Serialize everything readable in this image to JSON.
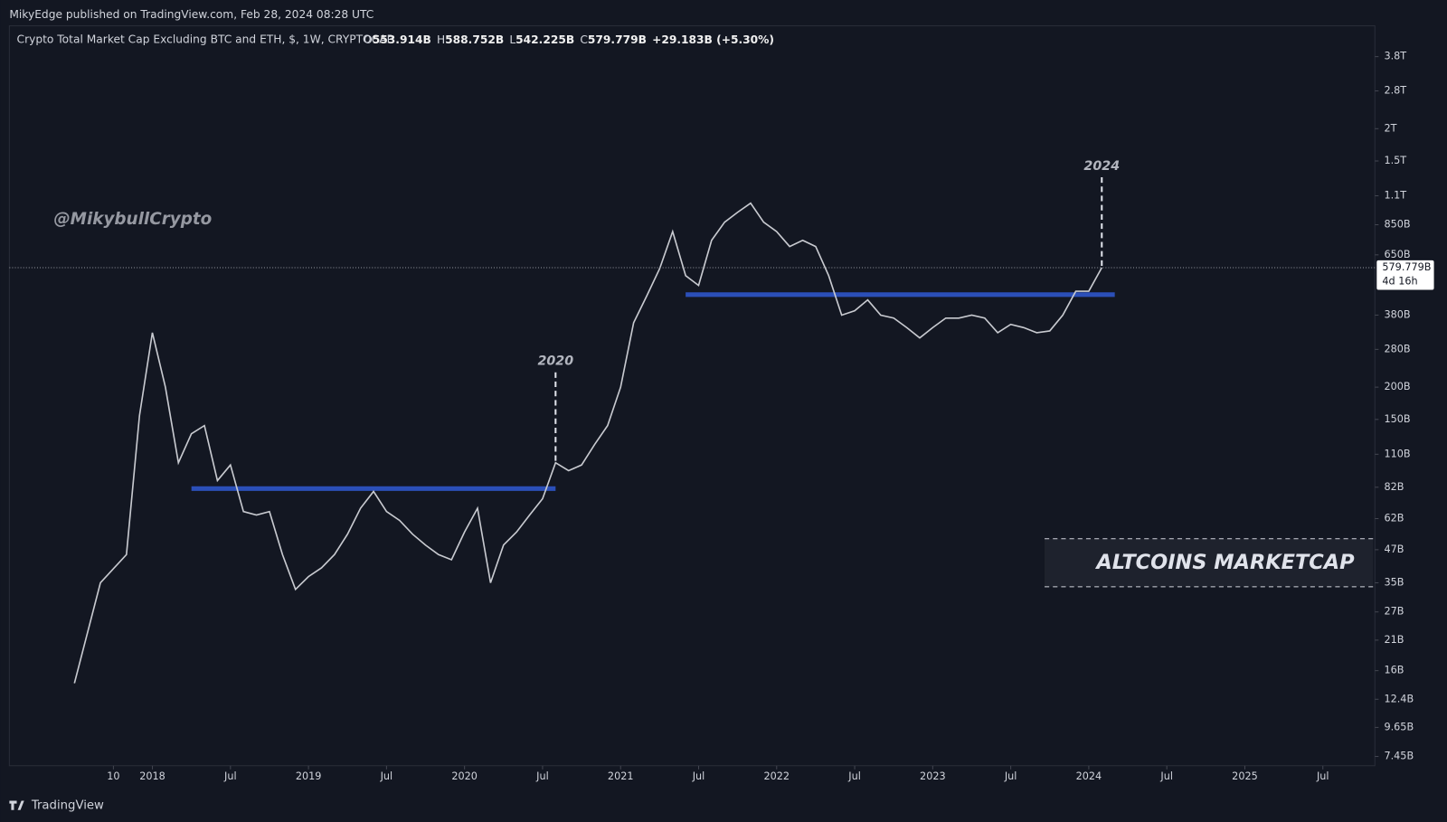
{
  "publisher": "MikyEdge published on TradingView.com, Feb 28, 2024 08:28 UTC",
  "brand": "TradingView",
  "chart_data": {
    "type": "line",
    "title": "Crypto Total Market Cap Excluding BTC and ETH, $, 1W, CRYPTOCAP",
    "ohlc": [
      {
        "key": "O",
        "value": "553.914B"
      },
      {
        "key": "H",
        "value": "588.752B"
      },
      {
        "key": "L",
        "value": "542.225B"
      },
      {
        "key": "C",
        "value": "579.779B"
      }
    ],
    "change": "+29.183B (+5.30%)",
    "watermark": "@MikybullCrypto",
    "caption": "ALTCOINS MARKETCAP",
    "last_label": "579.779B",
    "countdown": "4d 16h",
    "log_scale": true,
    "x": [
      "2017-07",
      "2017-09",
      "2017-11",
      "2017-12",
      "2018-01",
      "2018-02",
      "2018-03",
      "2018-04",
      "2018-05",
      "2018-06",
      "2018-07",
      "2018-08",
      "2018-09",
      "2018-10",
      "2018-11",
      "2018-12",
      "2019-01",
      "2019-02",
      "2019-03",
      "2019-04",
      "2019-05",
      "2019-06",
      "2019-07",
      "2019-08",
      "2019-09",
      "2019-10",
      "2019-11",
      "2019-12",
      "2020-01",
      "2020-02",
      "2020-03",
      "2020-04",
      "2020-05",
      "2020-06",
      "2020-07",
      "2020-08",
      "2020-09",
      "2020-10",
      "2020-11",
      "2020-12",
      "2021-01",
      "2021-02",
      "2021-03",
      "2021-04",
      "2021-05",
      "2021-06",
      "2021-07",
      "2021-08",
      "2021-09",
      "2021-10",
      "2021-11",
      "2021-12",
      "2022-01",
      "2022-02",
      "2022-03",
      "2022-04",
      "2022-05",
      "2022-06",
      "2022-07",
      "2022-08",
      "2022-09",
      "2022-10",
      "2022-11",
      "2022-12",
      "2023-01",
      "2023-02",
      "2023-03",
      "2023-04",
      "2023-05",
      "2023-06",
      "2023-07",
      "2023-08",
      "2023-09",
      "2023-10",
      "2023-11",
      "2023-12",
      "2024-01",
      "2024-02"
    ],
    "series": [
      {
        "name": "Close",
        "color": "#c8cad0",
        "values": [
          14.3,
          35,
          45,
          155,
          325,
          200,
          102,
          132,
          142,
          87,
          100,
          66,
          64,
          66,
          45,
          33,
          37,
          40,
          45,
          54,
          68,
          79,
          66,
          61,
          54,
          49,
          45,
          43,
          55,
          68,
          35,
          49,
          55,
          64,
          74,
          102,
          95,
          100,
          120,
          142,
          200,
          355,
          450,
          575,
          800,
          540,
          495,
          740,
          870,
          950,
          1030,
          870,
          800,
          700,
          740,
          700,
          540,
          380,
          395,
          435,
          380,
          370,
          340,
          310,
          340,
          370,
          370,
          380,
          370,
          325,
          350,
          340,
          325,
          330,
          380,
          470,
          470,
          579.779
        ]
      }
    ],
    "levels": [
      {
        "from": "2018-04",
        "to": "2020-08",
        "value": 81,
        "color": "#2b4fb8"
      },
      {
        "from": "2021-06",
        "to": "2024-03",
        "value": 456,
        "color": "#2b4fb8"
      }
    ],
    "annotations": [
      {
        "text": "2020",
        "x": "2020-08"
      },
      {
        "text": "2024",
        "x": "2024-02"
      }
    ],
    "xlim": [
      "2017-02",
      "2025-11"
    ],
    "xticks": [
      {
        "value": "2017-10",
        "label": "10"
      },
      {
        "value": "2018-01",
        "label": "2018"
      },
      {
        "value": "2018-07",
        "label": "Jul"
      },
      {
        "value": "2019-01",
        "label": "2019"
      },
      {
        "value": "2019-07",
        "label": "Jul"
      },
      {
        "value": "2020-01",
        "label": "2020"
      },
      {
        "value": "2020-07",
        "label": "Jul"
      },
      {
        "value": "2021-01",
        "label": "2021"
      },
      {
        "value": "2021-07",
        "label": "Jul"
      },
      {
        "value": "2022-01",
        "label": "2022"
      },
      {
        "value": "2022-07",
        "label": "Jul"
      },
      {
        "value": "2023-01",
        "label": "2023"
      },
      {
        "value": "2023-07",
        "label": "Jul"
      },
      {
        "value": "2024-01",
        "label": "2024"
      },
      {
        "value": "2024-07",
        "label": "Jul"
      },
      {
        "value": "2025-01",
        "label": "2025"
      },
      {
        "value": "2025-07",
        "label": "Jul"
      }
    ],
    "ylim": [
      6.86,
      5000
    ],
    "yticks": [
      {
        "value": 3800,
        "label": "3.8T"
      },
      {
        "value": 2800,
        "label": "2.8T"
      },
      {
        "value": 2000,
        "label": "2T"
      },
      {
        "value": 1500,
        "label": "1.5T"
      },
      {
        "value": 1100,
        "label": "1.1T"
      },
      {
        "value": 850,
        "label": "850B"
      },
      {
        "value": 650,
        "label": "650B"
      },
      {
        "value": 380,
        "label": "380B"
      },
      {
        "value": 280,
        "label": "280B"
      },
      {
        "value": 200,
        "label": "200B"
      },
      {
        "value": 150,
        "label": "150B"
      },
      {
        "value": 110,
        "label": "110B"
      },
      {
        "value": 82,
        "label": "82B"
      },
      {
        "value": 62,
        "label": "62B"
      },
      {
        "value": 47,
        "label": "47B"
      },
      {
        "value": 35,
        "label": "35B"
      },
      {
        "value": 27,
        "label": "27B"
      },
      {
        "value": 21,
        "label": "21B"
      },
      {
        "value": 16,
        "label": "16B"
      },
      {
        "value": 12.4,
        "label": "12.4B"
      },
      {
        "value": 9.65,
        "label": "9.65B"
      },
      {
        "value": 7.45,
        "label": "7.45B"
      }
    ]
  }
}
